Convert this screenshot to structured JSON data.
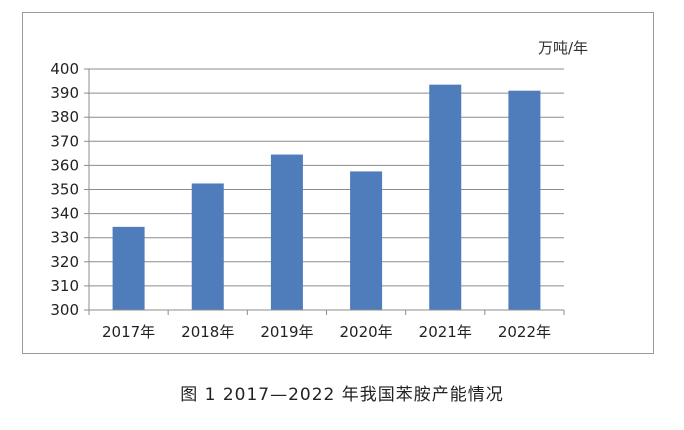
{
  "caption": "图 1  2017—2022 年我国苯胺产能情况",
  "chart_data": {
    "type": "bar",
    "title": "",
    "xlabel": "",
    "ylabel": "",
    "unit": "万吨/年",
    "categories": [
      "2017年",
      "2018年",
      "2019年",
      "2020年",
      "2021年",
      "2022年"
    ],
    "values": [
      334.5,
      352.5,
      364.5,
      357.5,
      393.5,
      391
    ],
    "ylim": [
      300,
      400
    ],
    "yticks": [
      300,
      310,
      320,
      330,
      340,
      350,
      360,
      370,
      380,
      390,
      400
    ],
    "grid": true,
    "legend": "none",
    "bar_color": "#4f7cba"
  }
}
